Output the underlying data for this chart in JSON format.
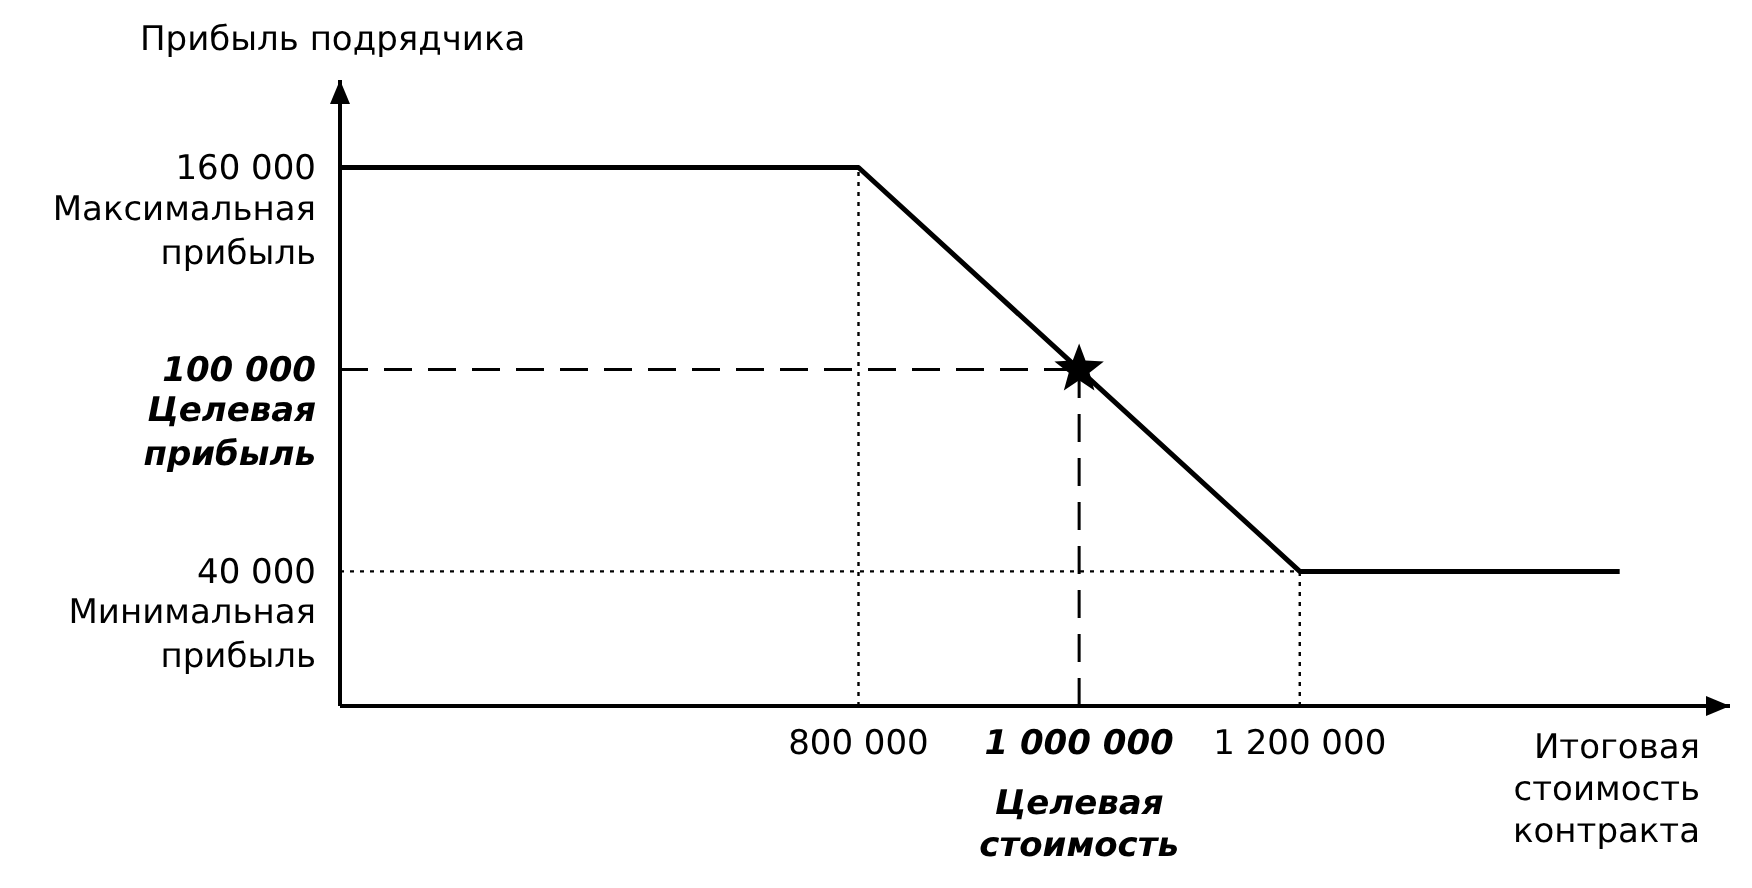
{
  "chart_data": {
    "type": "line",
    "xlabel": "Итоговая стоимость контракта",
    "ylabel": "Прибыль подрядчика",
    "xlim": [
      330000,
      1590000
    ],
    "ylim": [
      0,
      186000
    ],
    "xticks": [
      {
        "value": 800000,
        "label": "800 000"
      },
      {
        "value": 1000000,
        "label": "1 000 000"
      },
      {
        "value": 1200000,
        "label": "1 200 000"
      }
    ],
    "yticks": [
      {
        "value": 40000,
        "label": "40 000"
      },
      {
        "value": 100000,
        "label": "100 000"
      },
      {
        "value": 160000,
        "label": "160 000"
      }
    ],
    "grid": false,
    "series": [
      {
        "color": "#000000",
        "x": [
          330000,
          800000,
          1200000,
          1490000
        ],
        "values": [
          160000,
          160000,
          40000,
          40000
        ]
      },
      {
        "type": "scatter",
        "color": "#000000",
        "x": [
          1000000
        ],
        "values": [
          100000
        ],
        "marker": "star"
      }
    ],
    "ref_lines": [
      {
        "axis": "x",
        "value": 800000,
        "line_style": "dotted"
      },
      {
        "axis": "x",
        "value": 1200000,
        "line_style": "dotted"
      },
      {
        "axis": "y",
        "value": 40000,
        "line_style": "dotted"
      },
      {
        "axis": "x",
        "value": 1000000,
        "line_style": "dashed"
      },
      {
        "axis": "y",
        "value": 100000,
        "line_style": "dashed"
      }
    ],
    "annotations": [
      "Максимальная прибыль",
      "Целевая прибыль",
      "Минимальная прибыль",
      "Целевая стоимость"
    ]
  }
}
